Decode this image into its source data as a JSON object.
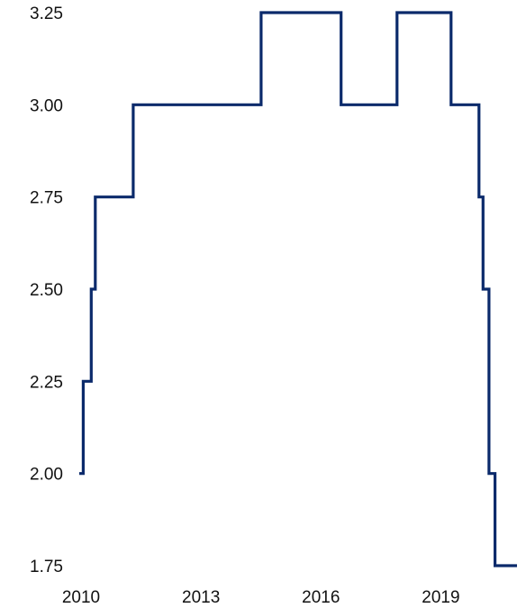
{
  "chart_data": {
    "type": "line",
    "step": true,
    "title": "",
    "xlabel": "",
    "ylabel": "",
    "grid": false,
    "legend": "none",
    "line_color": "#0b2a6b",
    "xlim": [
      2010,
      2020.95
    ],
    "ylim": [
      1.75,
      3.25
    ],
    "x_ticks": [
      {
        "value": 2010,
        "label": "2010"
      },
      {
        "value": 2013,
        "label": "2013"
      },
      {
        "value": 2016,
        "label": "2016"
      },
      {
        "value": 2019,
        "label": "2019"
      }
    ],
    "y_ticks": [
      {
        "value": 3.25,
        "label": "3.25"
      },
      {
        "value": 3.0,
        "label": "3.00"
      },
      {
        "value": 2.75,
        "label": "2.75"
      },
      {
        "value": 2.5,
        "label": "2.50"
      },
      {
        "value": 2.25,
        "label": "2.25"
      },
      {
        "value": 2.0,
        "label": "2.00"
      },
      {
        "value": 1.75,
        "label": "1.75"
      }
    ],
    "series": [
      {
        "x": [
          2010.0,
          2010.1,
          2010.3,
          2010.4,
          2011.35,
          2014.55,
          2016.55,
          2017.95,
          2019.3,
          2020.0,
          2020.1,
          2020.25,
          2020.4,
          2020.95
        ],
        "y": [
          2.0,
          2.25,
          2.5,
          2.75,
          3.0,
          3.25,
          3.0,
          3.25,
          3.0,
          2.75,
          2.5,
          2.0,
          1.75,
          1.75
        ]
      }
    ]
  }
}
